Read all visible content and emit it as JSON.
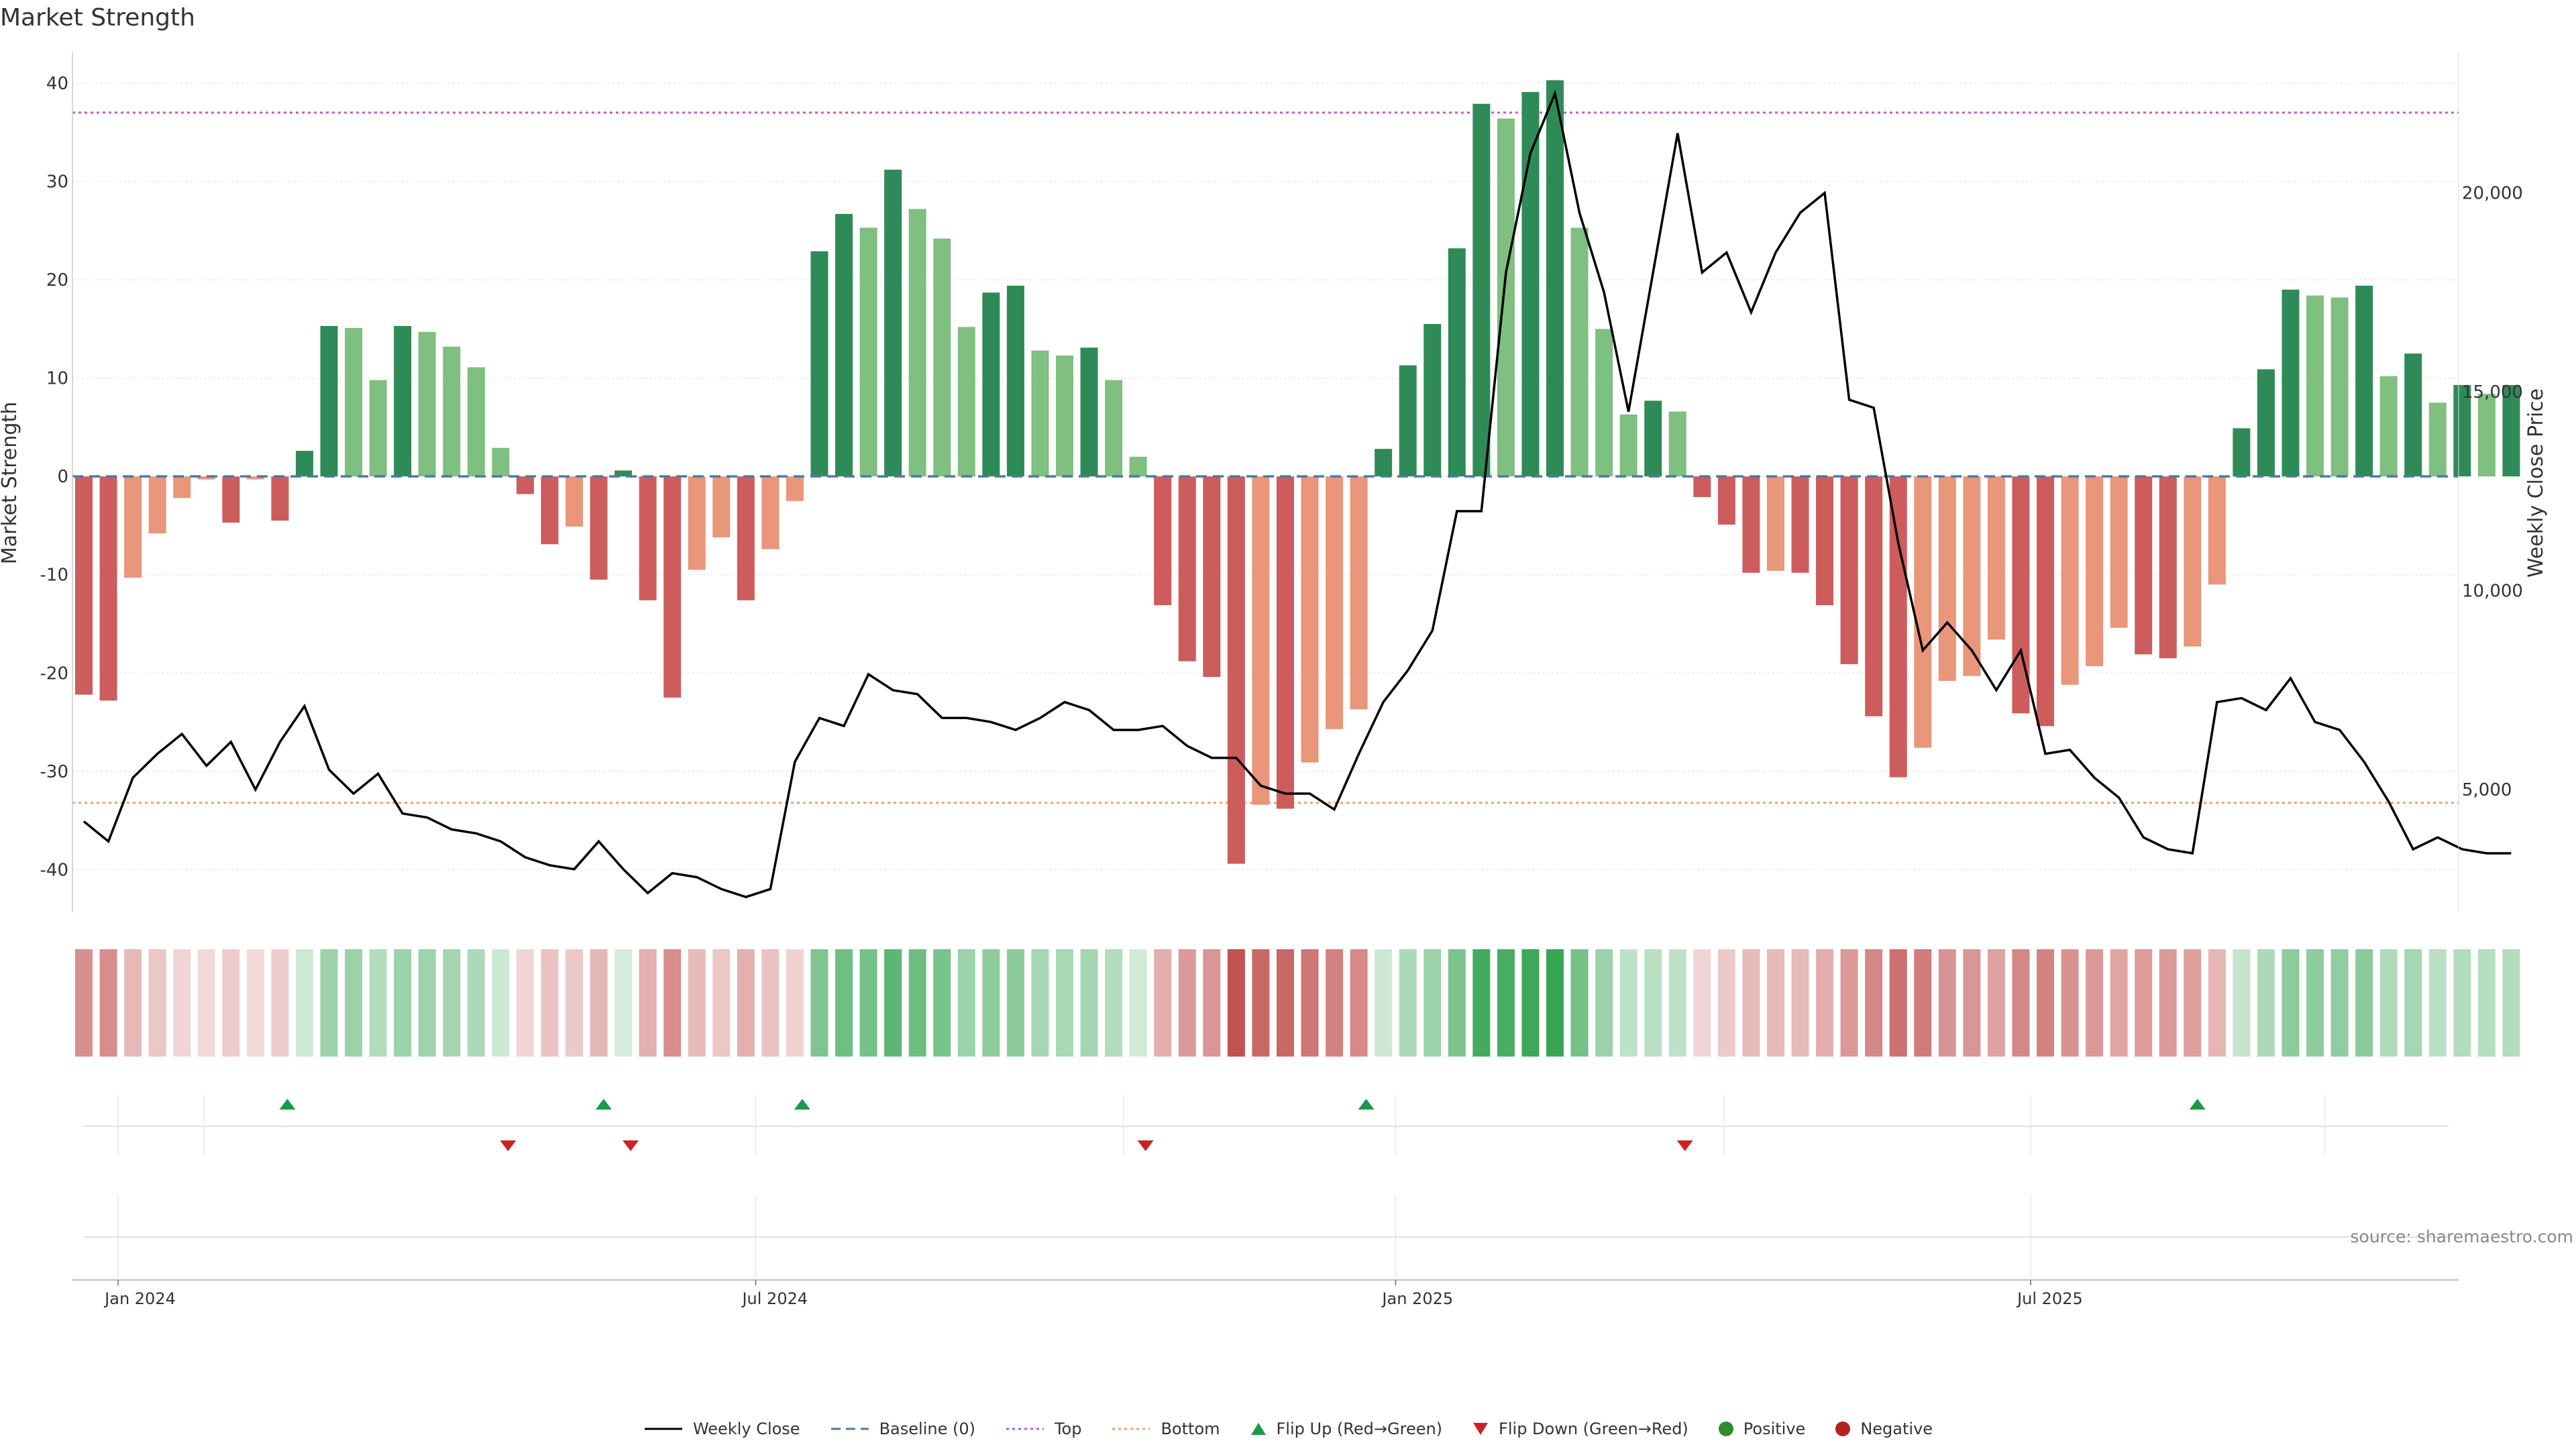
{
  "title": "Market Strength",
  "source_note": "source: sharemaestro.com",
  "chart_data": {
    "type": "bar",
    "title": "Market Strength",
    "ylabel_left": "Market Strength",
    "ylabel_right": "Weekly Close Price",
    "ylim_left": [
      -44,
      43
    ],
    "ylim_right": [
      2000,
      23500
    ],
    "yticks_left": [
      -40,
      -30,
      -20,
      -10,
      0,
      10,
      20,
      30,
      40
    ],
    "yticks_right": [
      5000,
      10000,
      15000,
      20000
    ],
    "ytick_labels_right": [
      "5,000",
      "10,000",
      "15,000",
      "20,000"
    ],
    "top_line": 37,
    "bottom_line": -33.2,
    "baseline": 0,
    "x_labels": [
      {
        "label": "Jan 2024",
        "week": 1.4
      },
      {
        "label": "Jul 2024",
        "week": 27.4
      },
      {
        "label": "Jan 2025",
        "week": 53.5
      },
      {
        "label": "Jul 2025",
        "week": 79.4
      }
    ],
    "strength": [
      -22.2,
      -22.8,
      -10.3,
      -5.8,
      -2.2,
      -0.3,
      -4.7,
      -0.3,
      -4.5,
      2.6,
      15.3,
      15.1,
      9.8,
      15.3,
      14.7,
      13.2,
      11.1,
      2.9,
      -1.8,
      -6.9,
      -5.1,
      -10.5,
      0.6,
      -12.6,
      -22.5,
      -9.5,
      -6.2,
      -12.6,
      -7.4,
      -2.5,
      22.9,
      26.7,
      25.3,
      31.2,
      27.2,
      24.2,
      15.2,
      18.7,
      19.4,
      12.8,
      12.3,
      13.1,
      9.8,
      2.0,
      -13.1,
      -18.8,
      -20.4,
      -39.4,
      -33.4,
      -33.8,
      -29.1,
      -25.7,
      -23.7,
      2.8,
      11.3,
      15.5,
      23.2,
      37.9,
      36.4,
      39.1,
      40.3,
      25.3,
      15.0,
      6.3,
      7.7,
      6.6,
      -2.1,
      -4.9,
      -9.8,
      -9.6,
      -9.8,
      -13.1,
      -19.1,
      -24.4,
      -30.6,
      -27.6,
      -20.8,
      -20.3,
      -16.6,
      -24.1,
      -25.4,
      -21.2,
      -19.3,
      -15.4,
      -18.1,
      -18.5,
      -17.3,
      -11.0,
      4.9,
      10.9,
      19.0,
      18.4,
      18.2,
      19.4,
      10.2,
      12.5,
      7.5,
      9.3,
      8.4,
      9.3
    ],
    "weekly_close": [
      4200,
      3700,
      5300,
      5900,
      6400,
      5600,
      6200,
      5000,
      6200,
      7100,
      5500,
      4900,
      5400,
      4400,
      4300,
      4000,
      3900,
      3700,
      3300,
      3100,
      3000,
      3700,
      3000,
      2400,
      2900,
      2800,
      2500,
      2300,
      2500,
      5700,
      6800,
      6600,
      7900,
      7500,
      7400,
      6800,
      6800,
      6700,
      6500,
      6800,
      7200,
      7000,
      6500,
      6500,
      6600,
      6100,
      5800,
      5800,
      5100,
      4900,
      4900,
      4500,
      5900,
      7200,
      8000,
      9000,
      12000,
      12000,
      18000,
      21000,
      22500,
      19500,
      17500,
      14500,
      18000,
      21500,
      18000,
      18500,
      17000,
      18500,
      19500,
      20000,
      14800,
      14600,
      11200,
      8500,
      9200,
      8500,
      7500,
      8500,
      5900,
      6000,
      5300,
      4800,
      3800,
      3500,
      3400,
      7200,
      7300,
      7000,
      7800,
      6700,
      6500,
      5700,
      4700,
      3500,
      3800,
      3500,
      3400,
      3400
    ],
    "bar_colors": {
      "strong_positive": "#2e8b57",
      "weak_positive": "#7fbf7f",
      "strong_negative": "#cd5c5c",
      "weak_negative": "#e9967a"
    },
    "heat_colors": {
      "positive": "#3aa655",
      "negative": "#c0504d"
    },
    "flip_up_weeks": [
      8.3,
      21.2,
      29.3,
      52.3,
      86.2
    ],
    "flip_down_weeks": [
      17.3,
      22.3,
      43.3,
      65.3
    ],
    "series": [
      {
        "name": "Weekly Close",
        "color": "#000000",
        "style": "solid"
      },
      {
        "name": "Baseline (0)",
        "color": "#4a7aa8",
        "style": "dashed"
      },
      {
        "name": "Top",
        "color": "#c45ac4",
        "style": "dotted"
      },
      {
        "name": "Bottom",
        "color": "#f0a060",
        "style": "dotted"
      }
    ]
  },
  "legend": {
    "weekly_close": "Weekly Close",
    "baseline": "Baseline (0)",
    "top": "Top",
    "bottom": "Bottom",
    "flip_up": "Flip Up (Red→Green)",
    "flip_down": "Flip Down (Green→Red)",
    "positive": "Positive",
    "negative": "Negative"
  },
  "legend_colors": {
    "weekly_close": "#000000",
    "baseline": "#4a7aa8",
    "top": "#c45ac4",
    "bottom": "#f0a060",
    "flip_up": "#1a9a4a",
    "flip_down": "#cc2222",
    "positive": "#2e8b2e",
    "negative": "#b22222"
  }
}
